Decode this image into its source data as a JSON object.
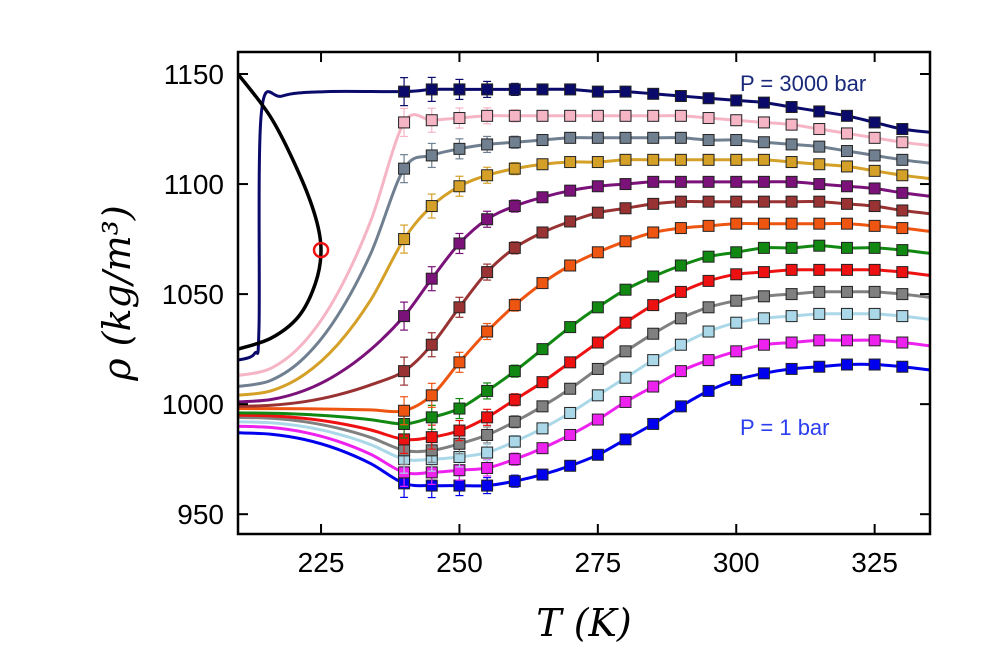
{
  "chart_data": {
    "type": "line",
    "xlabel": "T (K)",
    "ylabel": "ρ (kg/m³)",
    "ylabel_superscript": "3",
    "xlim": [
      210,
      335
    ],
    "ylim": [
      941,
      1160
    ],
    "xticks": [
      225,
      250,
      275,
      300,
      325
    ],
    "yticks": [
      950,
      1000,
      1050,
      1100,
      1150
    ],
    "xtick_labels": [
      "225",
      "250",
      "275",
      "300",
      "325"
    ],
    "ytick_labels": [
      "950",
      "1000",
      "1050",
      "1100",
      "1150"
    ],
    "grid": false,
    "annotations": [
      {
        "text": "P = 3000 bar",
        "color": "#1a2a7a",
        "x": 290,
        "y": 1143
      },
      {
        "text": "P = 1 bar",
        "color": "#2b3ff0",
        "x": 290,
        "y": 984
      }
    ],
    "marker_temperatures": [
      240,
      245,
      250,
      255,
      260,
      265,
      270,
      275,
      280,
      285,
      290,
      295,
      300,
      305,
      310,
      315,
      320,
      325,
      330
    ],
    "series": [
      {
        "color": "#0000ee",
        "values": [
          964,
          963,
          963,
          963,
          965,
          968,
          972,
          977,
          984,
          991,
          999,
          1006,
          1011,
          1014,
          1016,
          1017,
          1018,
          1018,
          1017
        ],
        "curve_start": 987
      },
      {
        "color": "#ee22ee",
        "values": [
          969,
          969,
          970,
          971,
          975,
          980,
          986,
          993,
          1001,
          1008,
          1015,
          1020,
          1024,
          1027,
          1028,
          1029,
          1029,
          1029,
          1028
        ],
        "curve_start": 990
      },
      {
        "color": "#aad8e8",
        "values": [
          975,
          975,
          976,
          978,
          983,
          989,
          996,
          1004,
          1012,
          1020,
          1027,
          1033,
          1037,
          1039,
          1040,
          1041,
          1041,
          1041,
          1040
        ],
        "curve_start": 992
      },
      {
        "color": "#808080",
        "values": [
          979,
          979,
          982,
          986,
          992,
          999,
          1007,
          1016,
          1024,
          1032,
          1039,
          1044,
          1047,
          1049,
          1050,
          1051,
          1051,
          1051,
          1050
        ],
        "curve_start": 994
      },
      {
        "color": "#ee1111",
        "values": [
          984,
          985,
          988,
          994,
          1002,
          1010,
          1019,
          1028,
          1037,
          1045,
          1051,
          1056,
          1059,
          1060,
          1061,
          1061,
          1061,
          1061,
          1060
        ],
        "curve_start": 995
      },
      {
        "color": "#118811",
        "values": [
          991,
          994,
          998,
          1006,
          1015,
          1025,
          1035,
          1044,
          1052,
          1058,
          1063,
          1067,
          1069,
          1071,
          1071,
          1072,
          1071,
          1071,
          1070
        ],
        "curve_start": 996
      },
      {
        "color": "#ee5511",
        "values": [
          997,
          1004,
          1019,
          1033,
          1045,
          1055,
          1063,
          1069,
          1074,
          1078,
          1080,
          1081,
          1082,
          1082,
          1082,
          1082,
          1082,
          1081,
          1080
        ],
        "curve_start": 998
      },
      {
        "color": "#993333",
        "values": [
          1015,
          1027,
          1044,
          1060,
          1071,
          1078,
          1083,
          1087,
          1089,
          1091,
          1092,
          1092,
          1092,
          1092,
          1092,
          1092,
          1091,
          1090,
          1088
        ],
        "curve_start": 999
      },
      {
        "color": "#7a127a",
        "values": [
          1040,
          1057,
          1073,
          1084,
          1090,
          1094,
          1097,
          1099,
          1100,
          1101,
          1101,
          1101,
          1101,
          1101,
          1101,
          1100,
          1099,
          1098,
          1096
        ],
        "curve_start": 1001
      },
      {
        "color": "#d4a028",
        "values": [
          1075,
          1090,
          1099,
          1104,
          1107,
          1109,
          1110,
          1110,
          1111,
          1111,
          1111,
          1111,
          1111,
          1111,
          1110,
          1109,
          1108,
          1106,
          1104
        ],
        "curve_start": 1004
      },
      {
        "color": "#708090",
        "values": [
          1107,
          1113,
          1116,
          1118,
          1119,
          1120,
          1121,
          1121,
          1121,
          1121,
          1121,
          1120,
          1120,
          1119,
          1118,
          1117,
          1115,
          1113,
          1111
        ],
        "curve_start": 1008
      },
      {
        "color": "#f5b5c5",
        "values": [
          1128,
          1129,
          1130,
          1131,
          1131,
          1131,
          1131,
          1131,
          1131,
          1131,
          1131,
          1130,
          1129,
          1128,
          1127,
          1125,
          1123,
          1121,
          1119
        ],
        "curve_start": 1013
      },
      {
        "color": "#0a0a6a",
        "values": [
          1142,
          1143,
          1143,
          1143,
          1143,
          1143,
          1143,
          1142,
          1142,
          1141,
          1140,
          1139,
          1138,
          1137,
          1135,
          1133,
          1131,
          1128,
          1125
        ],
        "curve_start": 1020
      }
    ],
    "boundary_curve": {
      "color": "#000000",
      "x": [
        210,
        216,
        221,
        224,
        225,
        224,
        221,
        216,
        210
      ],
      "y": [
        1150,
        1130,
        1105,
        1085,
        1070,
        1055,
        1040,
        1030,
        1025
      ]
    },
    "critical_point": {
      "x": 225,
      "y": 1070,
      "color": "#ee1111"
    }
  }
}
